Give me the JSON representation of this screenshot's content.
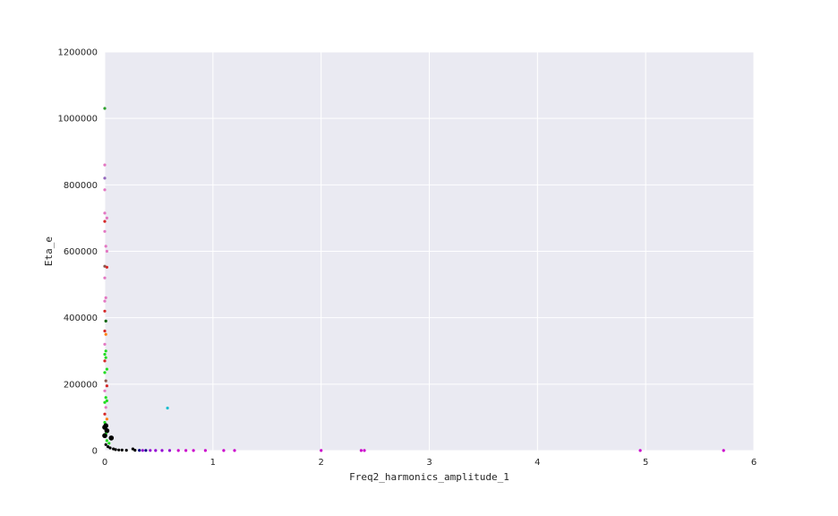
{
  "chart_data": {
    "type": "scatter",
    "title": "",
    "xlabel": "Freq2_harmonics_amplitude_1",
    "ylabel": "Eta_e",
    "xlim": [
      0,
      6
    ],
    "ylim": [
      0,
      1200000
    ],
    "x_ticks": [
      "0",
      "1",
      "2",
      "3",
      "4",
      "5",
      "6"
    ],
    "y_ticks": [
      "0",
      "200000",
      "400000",
      "600000",
      "800000",
      "1000000",
      "1200000"
    ],
    "grid": true,
    "background": "#eaeaf2",
    "points": [
      {
        "x": 0.0,
        "y": 1030000,
        "color": "#2ca02c"
      },
      {
        "x": 0.0,
        "y": 860000,
        "color": "#e377c2"
      },
      {
        "x": 0.0,
        "y": 820000,
        "color": "#9467bd"
      },
      {
        "x": 0.0,
        "y": 785000,
        "color": "#e377c2"
      },
      {
        "x": 0.0,
        "y": 715000,
        "color": "#e377c2"
      },
      {
        "x": 0.02,
        "y": 700000,
        "color": "#e377c2"
      },
      {
        "x": 0.0,
        "y": 690000,
        "color": "#d62728"
      },
      {
        "x": 0.0,
        "y": 660000,
        "color": "#e377c2"
      },
      {
        "x": 0.01,
        "y": 615000,
        "color": "#e377c2"
      },
      {
        "x": 0.02,
        "y": 600000,
        "color": "#e377c2"
      },
      {
        "x": 0.0,
        "y": 555000,
        "color": "#8c564b"
      },
      {
        "x": 0.02,
        "y": 552000,
        "color": "#d62728"
      },
      {
        "x": 0.0,
        "y": 520000,
        "color": "#e377c2"
      },
      {
        "x": 0.01,
        "y": 460000,
        "color": "#e377c2"
      },
      {
        "x": 0.0,
        "y": 450000,
        "color": "#e377c2"
      },
      {
        "x": 0.0,
        "y": 420000,
        "color": "#d62728"
      },
      {
        "x": 0.01,
        "y": 390000,
        "color": "#006400"
      },
      {
        "x": 0.0,
        "y": 360000,
        "color": "#d62728"
      },
      {
        "x": 0.01,
        "y": 350000,
        "color": "#ff7f0e"
      },
      {
        "x": 0.0,
        "y": 320000,
        "color": "#e377c2"
      },
      {
        "x": 0.01,
        "y": 300000,
        "color": "#22dd22"
      },
      {
        "x": 0.0,
        "y": 290000,
        "color": "#22dd22"
      },
      {
        "x": 0.01,
        "y": 280000,
        "color": "#22dd22"
      },
      {
        "x": 0.0,
        "y": 270000,
        "color": "#d62728"
      },
      {
        "x": 0.02,
        "y": 245000,
        "color": "#22dd22"
      },
      {
        "x": 0.0,
        "y": 235000,
        "color": "#22dd22"
      },
      {
        "x": 0.01,
        "y": 210000,
        "color": "#8c564b"
      },
      {
        "x": 0.02,
        "y": 195000,
        "color": "#d62728"
      },
      {
        "x": 0.0,
        "y": 180000,
        "color": "#e377c2"
      },
      {
        "x": 0.01,
        "y": 160000,
        "color": "#22dd22"
      },
      {
        "x": 0.02,
        "y": 150000,
        "color": "#22dd22"
      },
      {
        "x": 0.0,
        "y": 145000,
        "color": "#22dd22"
      },
      {
        "x": 0.01,
        "y": 130000,
        "color": "#e377c2"
      },
      {
        "x": 0.0,
        "y": 110000,
        "color": "#d62728"
      },
      {
        "x": 0.02,
        "y": 95000,
        "color": "#ff7f0e"
      },
      {
        "x": 0.0,
        "y": 85000,
        "color": "#22dd22"
      },
      {
        "x": 0.01,
        "y": 75000,
        "color": "#000000"
      },
      {
        "x": 0.0,
        "y": 70000,
        "color": "#000000"
      },
      {
        "x": 0.02,
        "y": 60000,
        "color": "#000000"
      },
      {
        "x": 0.01,
        "y": 50000,
        "color": "#22dd22"
      },
      {
        "x": 0.0,
        "y": 45000,
        "color": "#000000"
      },
      {
        "x": 0.06,
        "y": 38000,
        "color": "#000000"
      },
      {
        "x": 0.02,
        "y": 30000,
        "color": "#22dd22"
      },
      {
        "x": 0.04,
        "y": 22000,
        "color": "#22dd22"
      },
      {
        "x": 0.01,
        "y": 18000,
        "color": "#000000"
      },
      {
        "x": 0.03,
        "y": 12000,
        "color": "#000000"
      },
      {
        "x": 0.05,
        "y": 8000,
        "color": "#000000"
      },
      {
        "x": 0.08,
        "y": 5000,
        "color": "#000000"
      },
      {
        "x": 0.1,
        "y": 3000,
        "color": "#000000"
      },
      {
        "x": 0.13,
        "y": 2000,
        "color": "#000000"
      },
      {
        "x": 0.16,
        "y": 1500,
        "color": "#000000"
      },
      {
        "x": 0.2,
        "y": 1000,
        "color": "#000000"
      },
      {
        "x": 0.26,
        "y": 5000,
        "color": "#000000"
      },
      {
        "x": 0.28,
        "y": 1000,
        "color": "#000000"
      },
      {
        "x": 0.32,
        "y": 800,
        "color": "#000080"
      },
      {
        "x": 0.35,
        "y": 600,
        "color": "#9400d3"
      },
      {
        "x": 0.38,
        "y": 500,
        "color": "#000080"
      },
      {
        "x": 0.42,
        "y": 500,
        "color": "#9400d3"
      },
      {
        "x": 0.47,
        "y": 400,
        "color": "#9400d3"
      },
      {
        "x": 0.53,
        "y": 300,
        "color": "#9400d3"
      },
      {
        "x": 0.58,
        "y": 128000,
        "color": "#17becf"
      },
      {
        "x": 0.6,
        "y": 300,
        "color": "#9400d3"
      },
      {
        "x": 0.68,
        "y": 300,
        "color": "#cc00cc"
      },
      {
        "x": 0.75,
        "y": 300,
        "color": "#cc00cc"
      },
      {
        "x": 0.82,
        "y": 300,
        "color": "#cc00cc"
      },
      {
        "x": 0.93,
        "y": 300,
        "color": "#cc00cc"
      },
      {
        "x": 1.1,
        "y": 300,
        "color": "#cc00cc"
      },
      {
        "x": 1.2,
        "y": 300,
        "color": "#cc00cc"
      },
      {
        "x": 2.0,
        "y": 300,
        "color": "#cc00cc"
      },
      {
        "x": 2.37,
        "y": 300,
        "color": "#cc00cc"
      },
      {
        "x": 2.4,
        "y": 300,
        "color": "#cc00cc"
      },
      {
        "x": 4.95,
        "y": 300,
        "color": "#cc00cc"
      },
      {
        "x": 5.72,
        "y": 300,
        "color": "#cc00cc"
      }
    ]
  }
}
